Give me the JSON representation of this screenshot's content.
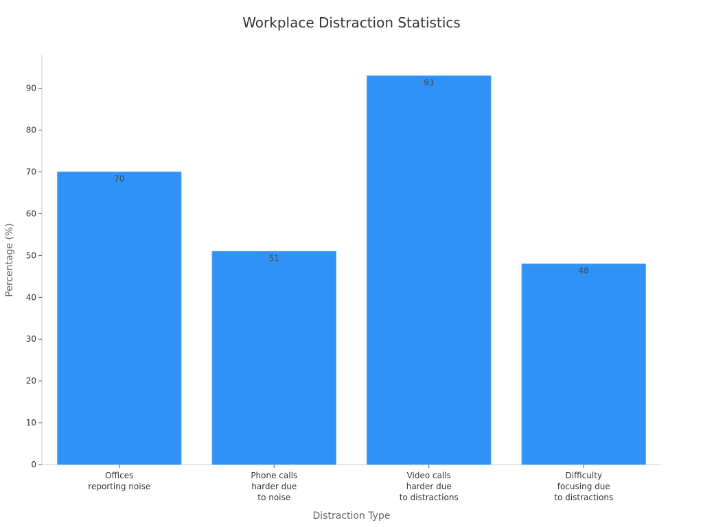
{
  "chart_data": {
    "type": "bar",
    "title": "Workplace Distraction Statistics",
    "xlabel": "Distraction Type",
    "ylabel": "Percentage (%)",
    "categories": [
      [
        "Offices",
        "reporting noise"
      ],
      [
        "Phone calls",
        "harder due",
        "to noise"
      ],
      [
        "Video calls",
        "harder due",
        "to distractions"
      ],
      [
        "Difficulty",
        "focusing due",
        "to distractions"
      ]
    ],
    "values": [
      70,
      51,
      93,
      48
    ],
    "data_labels": [
      "70",
      "51",
      "93",
      "48"
    ],
    "ylim": [
      0,
      98
    ],
    "yticks": [
      0,
      10,
      20,
      30,
      40,
      50,
      60,
      70,
      80,
      90
    ],
    "grid": false,
    "legend": "none",
    "colors": {
      "bar": "#3092f7",
      "bar_edge": "#5aa7f7"
    }
  }
}
